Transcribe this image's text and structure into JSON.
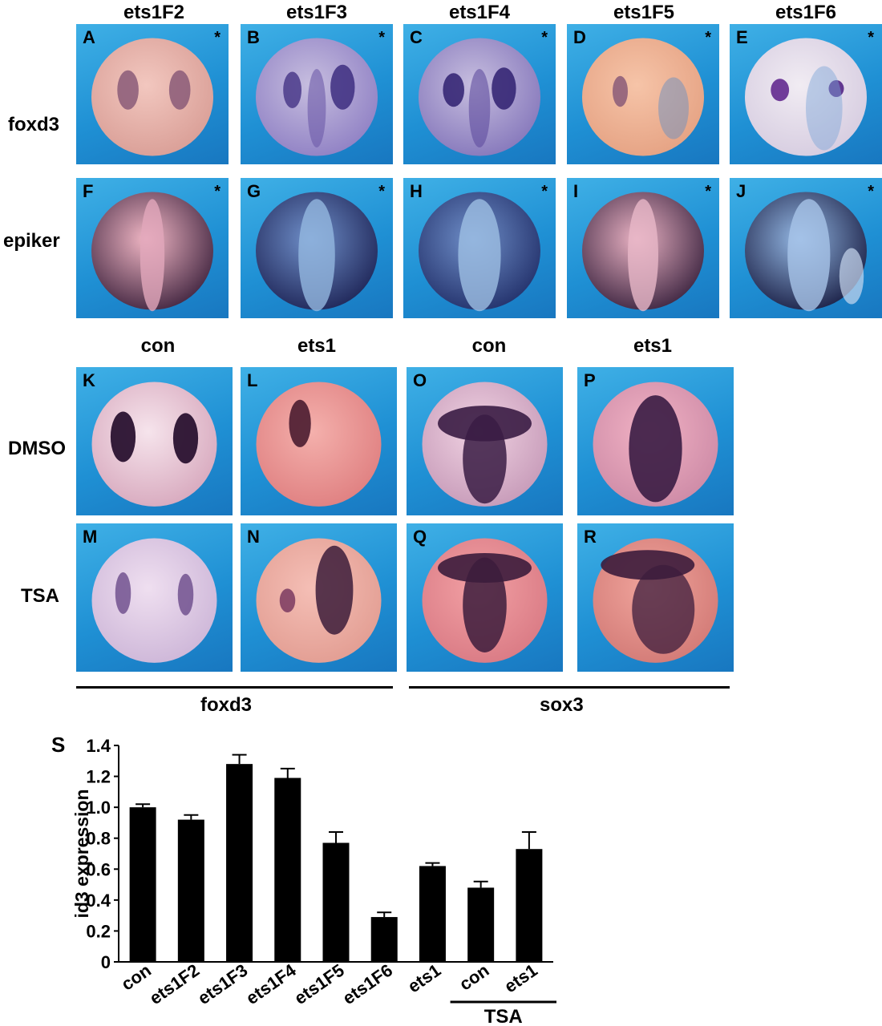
{
  "top": {
    "columns": [
      "ets1F2",
      "ets1F3",
      "ets1F4",
      "ets1F5",
      "ets1F6"
    ],
    "rows": [
      "foxd3",
      "epiker"
    ],
    "panels": [
      {
        "label": "A",
        "star": "*"
      },
      {
        "label": "B",
        "star": "*"
      },
      {
        "label": "C",
        "star": "*"
      },
      {
        "label": "D",
        "star": "*"
      },
      {
        "label": "E",
        "star": "*"
      },
      {
        "label": "F",
        "star": "*"
      },
      {
        "label": "G",
        "star": "*"
      },
      {
        "label": "H",
        "star": "*"
      },
      {
        "label": "I",
        "star": "*"
      },
      {
        "label": "J",
        "star": "*"
      }
    ]
  },
  "middle": {
    "columns": [
      "con",
      "ets1",
      "con",
      "ets1"
    ],
    "rows": [
      "DMSO",
      "TSA"
    ],
    "panels": [
      {
        "label": "K"
      },
      {
        "label": "L"
      },
      {
        "label": "O"
      },
      {
        "label": "P"
      },
      {
        "label": "M"
      },
      {
        "label": "N"
      },
      {
        "label": "Q"
      },
      {
        "label": "R"
      }
    ],
    "groups": [
      "foxd3",
      "sox3"
    ]
  },
  "chart_data": {
    "panel_label": "S",
    "type": "bar",
    "ylabel": "id3 expression",
    "ylim": [
      0,
      1.4
    ],
    "yticks": [
      "0",
      "0.2",
      "0.4",
      "0.6",
      "0.8",
      "1.0",
      "1.2",
      "1.4"
    ],
    "categories": [
      "con",
      "ets1F2",
      "ets1F3",
      "ets1F4",
      "ets1F5",
      "ets1F6",
      "ets1",
      "con",
      "ets1"
    ],
    "values": [
      1.0,
      0.92,
      1.28,
      1.19,
      0.77,
      0.29,
      0.62,
      0.48,
      0.73
    ],
    "errors": [
      0.02,
      0.03,
      0.06,
      0.06,
      0.07,
      0.03,
      0.02,
      0.04,
      0.11
    ],
    "group_label": "TSA",
    "bar_color": "#000000"
  }
}
